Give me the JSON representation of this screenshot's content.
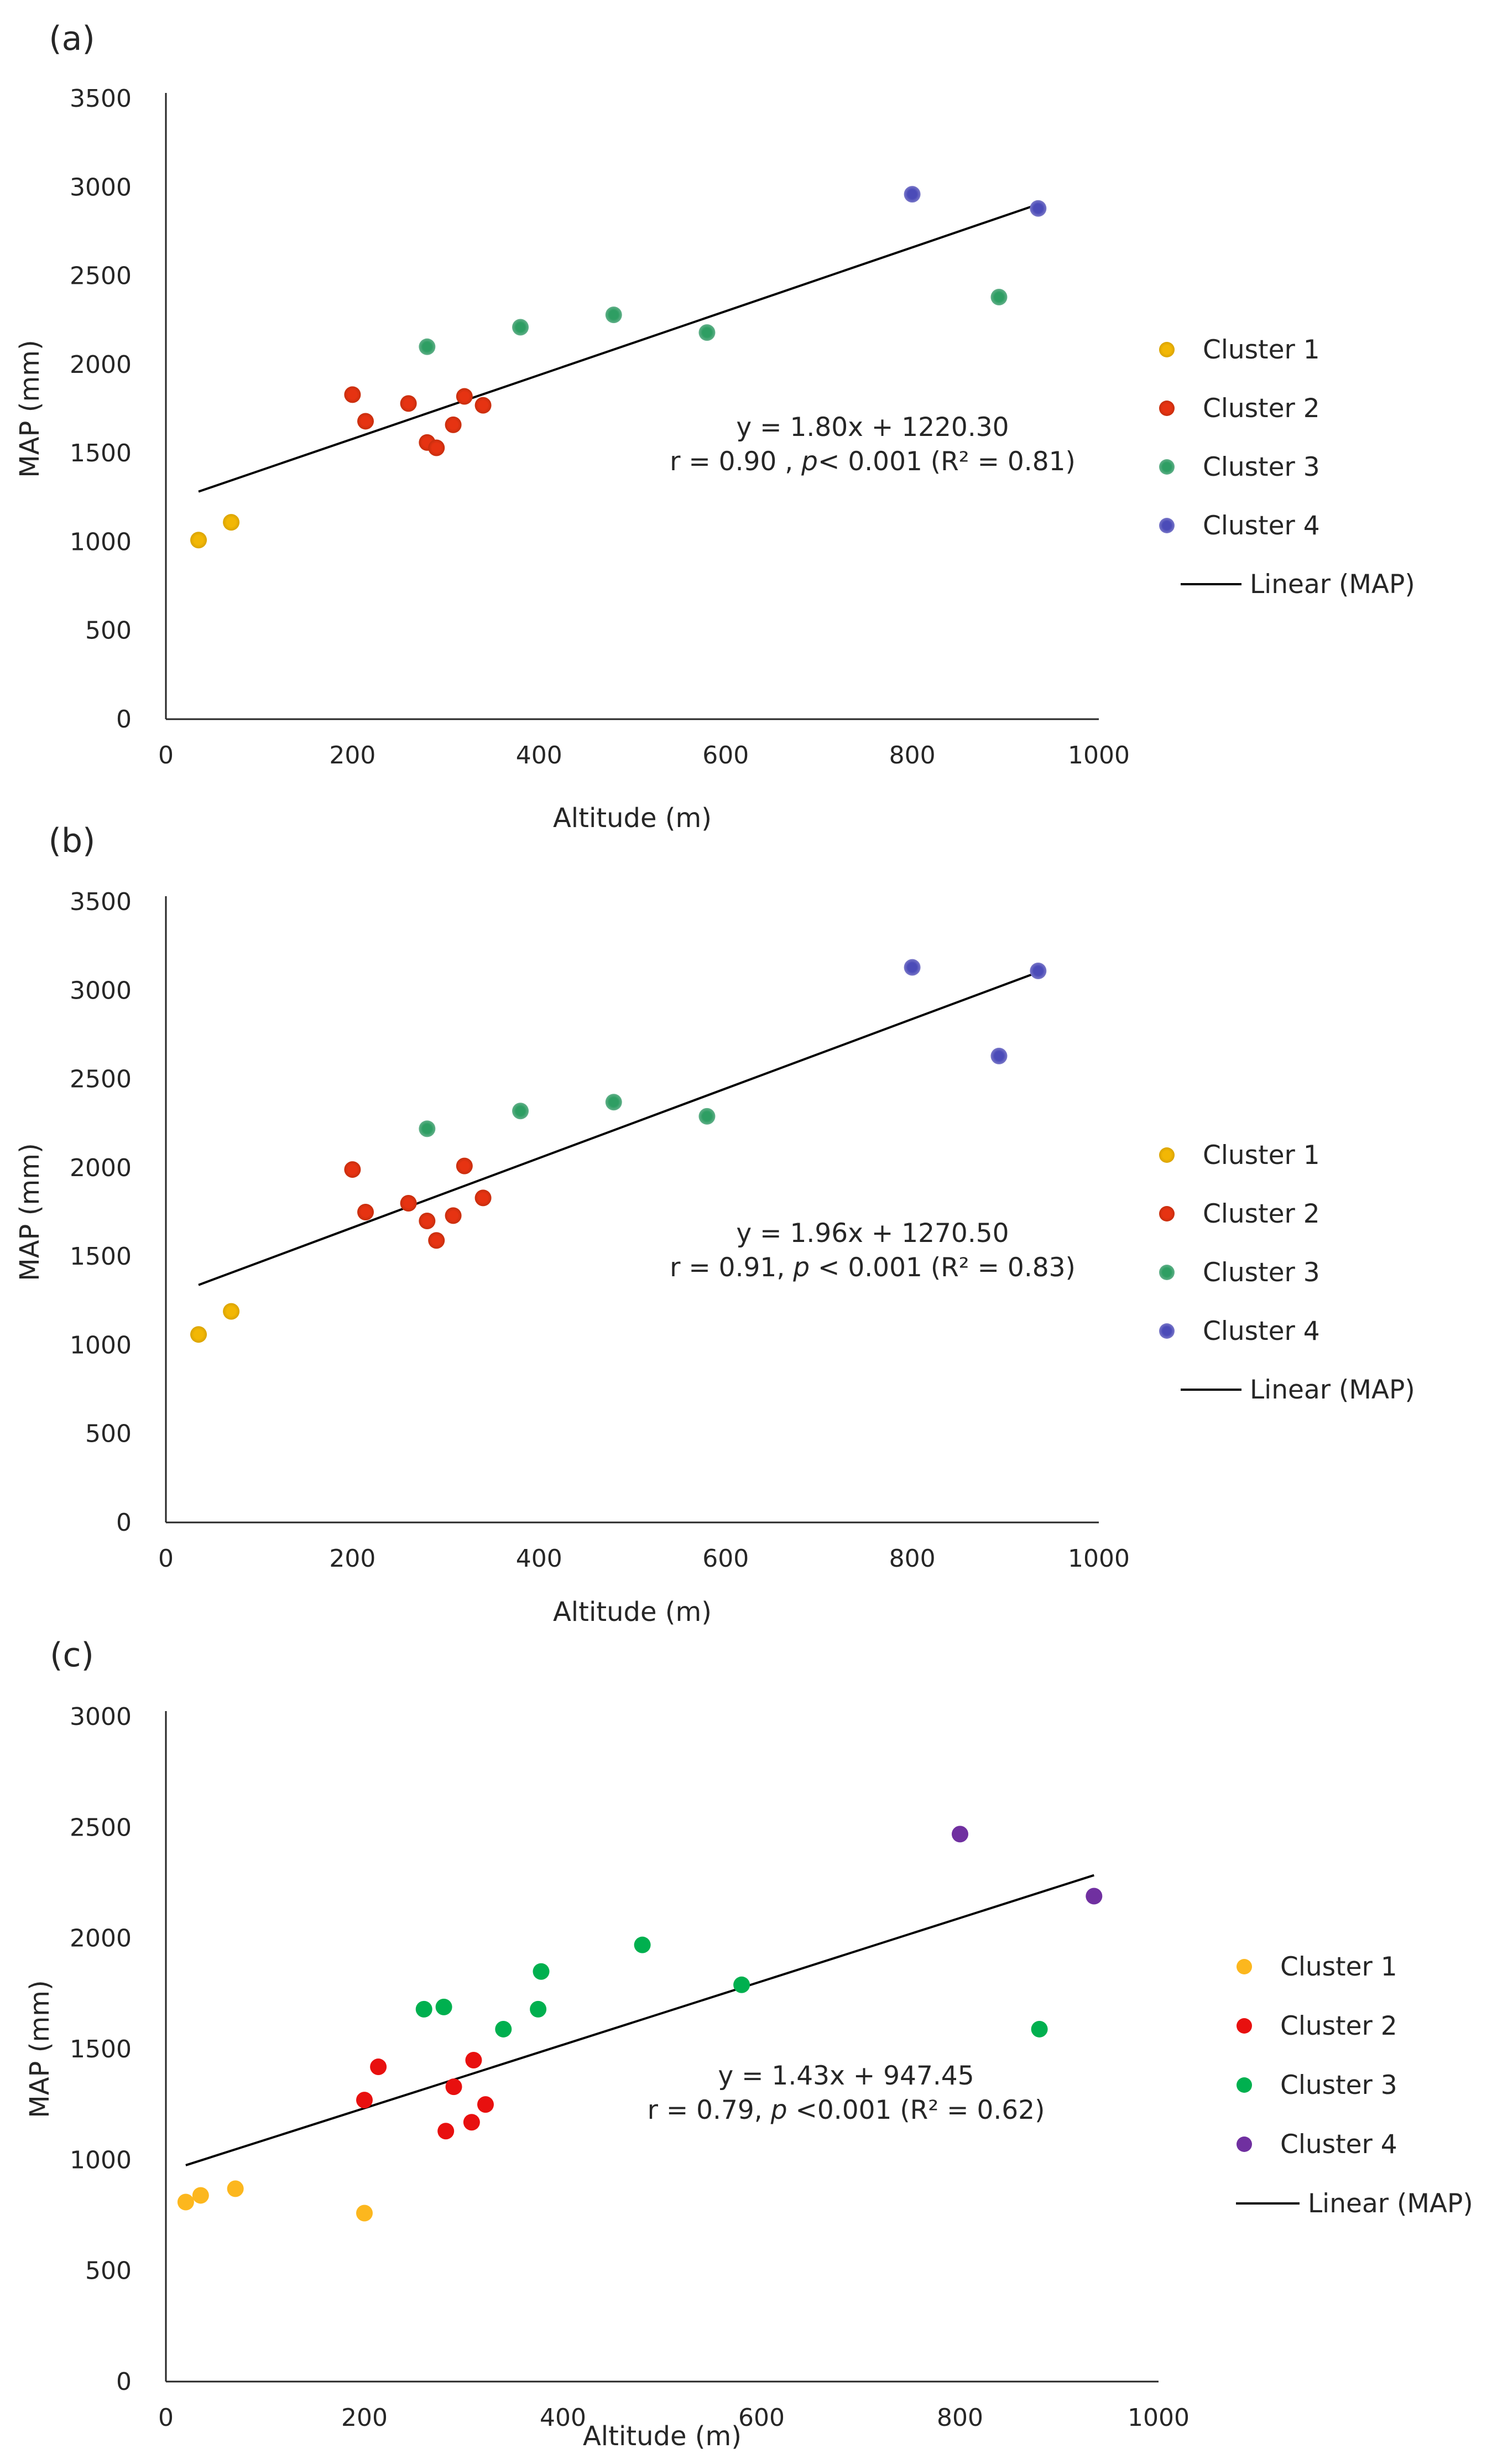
{
  "chart_data": [
    {
      "panel": "(a)",
      "type": "scatter",
      "xlabel": "Altitude (m)",
      "ylabel": "MAP (mm)",
      "xlim": [
        0,
        1000
      ],
      "ylim": [
        0,
        3500
      ],
      "xticks": [
        0,
        200,
        400,
        600,
        800,
        1000
      ],
      "yticks": [
        0,
        500,
        1000,
        1500,
        2000,
        2500,
        3000,
        3500
      ],
      "grid": false,
      "series": [
        {
          "name": "Cluster 1",
          "color": "#f2b705",
          "points": [
            [
              35,
              1010
            ],
            [
              70,
              1110
            ]
          ]
        },
        {
          "name": "Cluster 2",
          "color": "#e63312",
          "points": [
            [
              200,
              1830
            ],
            [
              214,
              1680
            ],
            [
              260,
              1780
            ],
            [
              280,
              1560
            ],
            [
              290,
              1530
            ],
            [
              308,
              1660
            ],
            [
              320,
              1820
            ],
            [
              340,
              1770
            ]
          ]
        },
        {
          "name": "Cluster 3",
          "color": "#2e9e63",
          "points": [
            [
              280,
              2100
            ],
            [
              380,
              2210
            ],
            [
              480,
              2280
            ],
            [
              580,
              2180
            ],
            [
              893,
              2380
            ]
          ]
        },
        {
          "name": "Cluster 4",
          "color": "#4b4bb8",
          "points": [
            [
              800,
              2960
            ],
            [
              935,
              2880
            ]
          ]
        }
      ],
      "trendline": {
        "name": "Linear (MAP)",
        "color": "#000000",
        "slope": 1.8,
        "intercept": 1220.3,
        "x_range": [
          35,
          935
        ]
      },
      "annotation": {
        "line1": "y = 1.80x + 1220.30",
        "line2_pre": "r = 0.90 , ",
        "p": "p",
        "line2_post": "< 0.001 (R² = 0.81)"
      },
      "legend_position": "right"
    },
    {
      "panel": "(b)",
      "type": "scatter",
      "xlabel": "Altitude (m)",
      "ylabel": "MAP (mm)",
      "xlim": [
        0,
        1000
      ],
      "ylim": [
        0,
        3500
      ],
      "xticks": [
        0,
        200,
        400,
        600,
        800,
        1000
      ],
      "yticks": [
        0,
        500,
        1000,
        1500,
        2000,
        2500,
        3000,
        3500
      ],
      "grid": false,
      "series": [
        {
          "name": "Cluster 1",
          "color": "#f2b705",
          "points": [
            [
              35,
              1060
            ],
            [
              70,
              1190
            ]
          ]
        },
        {
          "name": "Cluster 2",
          "color": "#e63312",
          "points": [
            [
              200,
              1990
            ],
            [
              214,
              1750
            ],
            [
              260,
              1800
            ],
            [
              280,
              1700
            ],
            [
              290,
              1590
            ],
            [
              308,
              1730
            ],
            [
              320,
              2010
            ],
            [
              340,
              1830
            ]
          ]
        },
        {
          "name": "Cluster 3",
          "color": "#2e9e63",
          "points": [
            [
              280,
              2220
            ],
            [
              380,
              2320
            ],
            [
              480,
              2370
            ],
            [
              580,
              2290
            ]
          ]
        },
        {
          "name": "Cluster 4",
          "color": "#4b4bb8",
          "points": [
            [
              800,
              3130
            ],
            [
              935,
              3110
            ],
            [
              893,
              2630
            ]
          ]
        }
      ],
      "trendline": {
        "name": "Linear (MAP)",
        "color": "#000000",
        "slope": 1.96,
        "intercept": 1270.5,
        "x_range": [
          35,
          935
        ]
      },
      "annotation": {
        "line1": "y = 1.96x + 1270.50",
        "line2_pre": "r = 0.91, ",
        "p": "p",
        "line2_post": " < 0.001 (R² = 0.83)"
      },
      "legend_position": "right"
    },
    {
      "panel": "(c)",
      "type": "scatter",
      "xlabel": "Altitude (m)",
      "ylabel": "MAP (mm)",
      "xlim": [
        0,
        1000
      ],
      "ylim": [
        0,
        3000
      ],
      "xticks": [
        0,
        200,
        400,
        600,
        800,
        1000
      ],
      "yticks": [
        0,
        500,
        1000,
        1500,
        2000,
        2500,
        3000
      ],
      "grid": false,
      "series": [
        {
          "name": "Cluster 1",
          "color": "#fcb71e",
          "points": [
            [
              20,
              810
            ],
            [
              35,
              840
            ],
            [
              70,
              870
            ],
            [
              200,
              760
            ]
          ]
        },
        {
          "name": "Cluster 2",
          "color": "#e8100f",
          "points": [
            [
              200,
              1270
            ],
            [
              214,
              1420
            ],
            [
              282,
              1130
            ],
            [
              290,
              1330
            ],
            [
              308,
              1170
            ],
            [
              310,
              1450
            ],
            [
              322,
              1250
            ]
          ]
        },
        {
          "name": "Cluster 3",
          "color": "#00b04f",
          "points": [
            [
              260,
              1680
            ],
            [
              280,
              1690
            ],
            [
              340,
              1590
            ],
            [
              375,
              1680
            ],
            [
              378,
              1850
            ],
            [
              480,
              1970
            ],
            [
              580,
              1790
            ],
            [
              880,
              1590
            ]
          ]
        },
        {
          "name": "Cluster 4",
          "color": "#7030a0",
          "points": [
            [
              800,
              2470
            ],
            [
              935,
              2190
            ]
          ]
        }
      ],
      "trendline": {
        "name": "Linear (MAP)",
        "color": "#000000",
        "slope": 1.43,
        "intercept": 947.45,
        "x_range": [
          20,
          935
        ]
      },
      "annotation": {
        "line1": "y = 1.43x + 947.45",
        "line2_pre": "r = 0.79, ",
        "p": "p",
        "line2_post": " <0.001 (R² = 0.62)"
      },
      "legend_position": "right"
    }
  ]
}
